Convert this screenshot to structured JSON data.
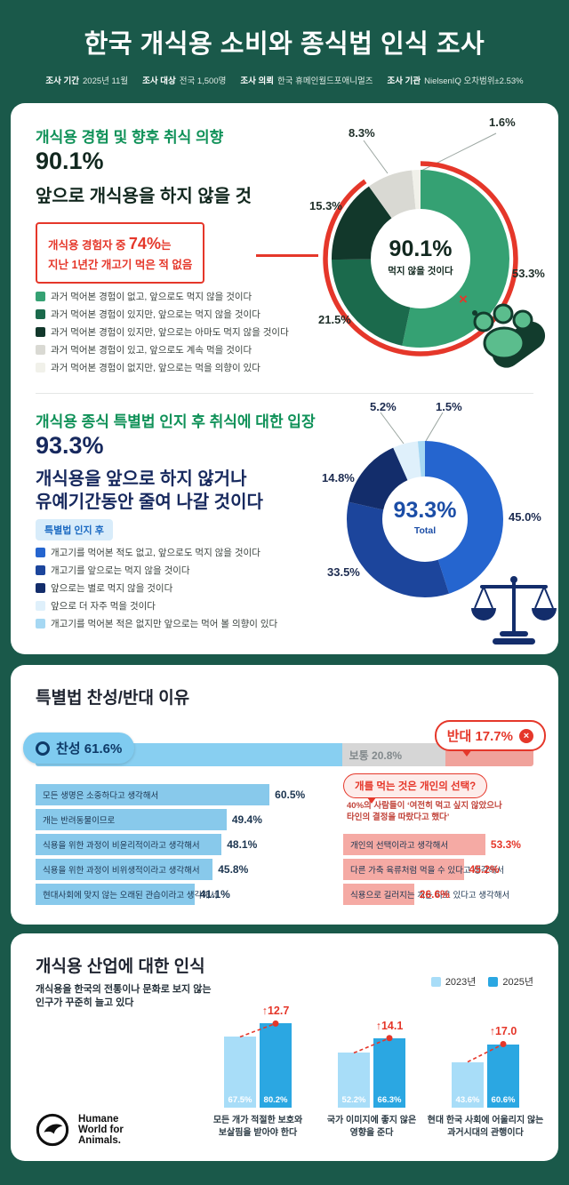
{
  "header": {
    "title": "한국 개식용 소비와 종식법 인식 조사",
    "meta": [
      {
        "label": "조사 기간",
        "value": "2025년 11월"
      },
      {
        "label": "조사 대상",
        "value": "전국 1,500명"
      },
      {
        "label": "조사 의뢰",
        "value": "한국 휴메인월드포애니멀즈"
      },
      {
        "label": "조사 기관",
        "value": "NielsenIQ 오차범위±2.53%"
      }
    ]
  },
  "survey1": {
    "heading": "개식용 경험 및 향후 취식 의향",
    "big_pct": "90.1%",
    "subtitle": "앞으로 개식용을 하지 않을 것",
    "callout": {
      "line1_pre": "개식용 경험자 중 ",
      "line1_em": "74%",
      "line1_post": "는",
      "line2": "지난 1년간 개고기 먹은 적 없음"
    }
  },
  "survey2": {
    "heading": "개식용 종식 특별법 인지 후 취식에 대한 입장",
    "big_pct": "93.3%",
    "line1": "개식용을 앞으로 하지 않거나",
    "line2": "유예기간동안 줄여 나갈 것이다",
    "badge": "특별법 인지 후"
  },
  "reasons": {
    "heading": "특별법 찬성/반대 이유",
    "callout_title": "개를 먹는 것은 개인의 선택?",
    "note1": "40%의 사람들이 ‘여전히 먹고 싶지 않았으나",
    "note2": "타인의 결정을 따랐다고 했다’"
  },
  "industry": {
    "heading": "개식용 산업에 대한 인식",
    "desc1": "개식용을 한국의 전통이나 문화로 보지 않는",
    "desc2": "인구가 꾸준히 늘고 있다"
  },
  "logo": {
    "line1": "Humane",
    "line2": "World for",
    "line3": "Animals."
  },
  "colors": {
    "background": "#1a594a",
    "accent_red": "#e5372a",
    "heading_green": "#0f9158",
    "navy": "#17295e"
  },
  "chart_data": [
    {
      "id": "experience_intent_donut",
      "type": "pie",
      "title": "개식용 경험 및 향후 취식 의향",
      "center": {
        "pct": "90.1%",
        "label": "먹지 않을 것이다"
      },
      "segments": [
        {
          "label": "과거 먹어본 경험이 없고, 앞으로도 먹지 않을 것이다",
          "value": 53.3,
          "pct": "53.3%",
          "color": "#35a173"
        },
        {
          "label": "과거 먹어본 경험이 있지만, 앞으로는 먹지 않을 것이다",
          "value": 21.5,
          "pct": "21.5%",
          "color": "#1b6a4c"
        },
        {
          "label": "과거 먹어본 경험이 있지만, 앞으로는 아마도 먹지 않을 것이다",
          "value": 15.3,
          "pct": "15.3%",
          "color": "#12382b"
        },
        {
          "label": "과거 먹어본 경험이 있고, 앞으로도 계속 먹을 것이다",
          "value": 8.3,
          "pct": "8.3%",
          "color": "#d9d9d3"
        },
        {
          "label": "과거 먹어본 경험이 없지만, 앞으로는 먹을 의향이 있다",
          "value": 1.6,
          "pct": "1.6%",
          "color": "#f1f1ea"
        }
      ],
      "highlight_arc": {
        "value": 90.1,
        "color": "#e5372a"
      }
    },
    {
      "id": "law_awareness_donut",
      "type": "pie",
      "title": "개식용 종식 특별법 인지 후 취식에 대한 입장",
      "center": {
        "pct": "93.3%",
        "label": "Total"
      },
      "segments": [
        {
          "label": "개고기를 먹어본 적도 없고, 앞으로도 먹지 않을 것이다",
          "value": 45.0,
          "pct": "45.0%",
          "color": "#2565cf"
        },
        {
          "label": "개고기를 앞으로는 먹지 않을 것이다",
          "value": 33.5,
          "pct": "33.5%",
          "color": "#1c459c"
        },
        {
          "label": "앞으로는 별로 먹지 않을 것이다",
          "value": 14.8,
          "pct": "14.8%",
          "color": "#132d6b"
        },
        {
          "label": "앞으로 더 자주 먹을 것이다",
          "value": 5.2,
          "pct": "5.2%",
          "color": "#dff0fb"
        },
        {
          "label": "개고기를 먹어본 적은 없지만 앞으로는 먹어 볼 의향이 있다",
          "value": 1.5,
          "pct": "1.5%",
          "color": "#a6d8f3"
        }
      ]
    },
    {
      "id": "law_stance_stacked_bar",
      "type": "bar",
      "segments": [
        {
          "label": "찬성",
          "value": 61.6,
          "display": "찬성 61.6%",
          "color": "#88cff1"
        },
        {
          "label": "보통",
          "value": 20.8,
          "display": "보통 20.8%",
          "color": "#d6d6d6"
        },
        {
          "label": "반대",
          "value": 17.7,
          "display": "반대 17.7%",
          "color": "#f0a29b"
        }
      ]
    },
    {
      "id": "agree_reasons_bar",
      "type": "bar",
      "color": "#88c9eb",
      "items": [
        {
          "label": "모든 생명은 소중하다고 생각해서",
          "value": 60.5,
          "pct": "60.5%"
        },
        {
          "label": "개는 반려동물이므로",
          "value": 49.4,
          "pct": "49.4%"
        },
        {
          "label": "식용을 위한 과정이 비윤리적이라고 생각해서",
          "value": 48.1,
          "pct": "48.1%"
        },
        {
          "label": "식용을 위한 과정이 비위생적이라고 생각해서",
          "value": 45.8,
          "pct": "45.8%"
        },
        {
          "label": "현대사회에 맞지 않는 오래된 관습이라고 생각해서",
          "value": 41.1,
          "pct": "41.1%"
        }
      ]
    },
    {
      "id": "oppose_reasons_bar",
      "type": "bar",
      "color": "#f5aaa4",
      "items": [
        {
          "label": "개인의 선택이라고 생각해서",
          "value": 53.3,
          "pct": "53.3%"
        },
        {
          "label": "다른 가축 육류처럼 먹을 수 있다고 생각해서",
          "value": 45.2,
          "pct": "45.2%"
        },
        {
          "label": "식용으로 길러지는 개는 따로 있다고 생각해서",
          "value": 26.6,
          "pct": "26.6%"
        }
      ]
    },
    {
      "id": "industry_perception_grouped_bar",
      "type": "bar",
      "title": "개식용 산업에 대한 인식",
      "ylim": [
        0,
        100
      ],
      "series": [
        {
          "name": "2023년",
          "color": "#a8ddf8"
        },
        {
          "name": "2025년",
          "color": "#2ba7e2"
        }
      ],
      "groups": [
        {
          "caption1": "모든 개가 적절한 보호와",
          "caption2": "보살핌을 받아야 한다",
          "values": [
            67.5,
            80.2
          ],
          "labels": [
            "67.5%",
            "80.2%"
          ],
          "diff": "12.7"
        },
        {
          "caption1": "국가 이미지에 좋지 않은",
          "caption2": "영향을 준다",
          "values": [
            52.2,
            66.3
          ],
          "labels": [
            "52.2%",
            "66.3%"
          ],
          "diff": "14.1"
        },
        {
          "caption1": "현대 한국 사회에 어울리지 않는",
          "caption2": "과거시대의 관행이다",
          "values": [
            43.6,
            60.6
          ],
          "labels": [
            "43.6%",
            "60.6%"
          ],
          "diff": "17.0"
        }
      ]
    }
  ]
}
